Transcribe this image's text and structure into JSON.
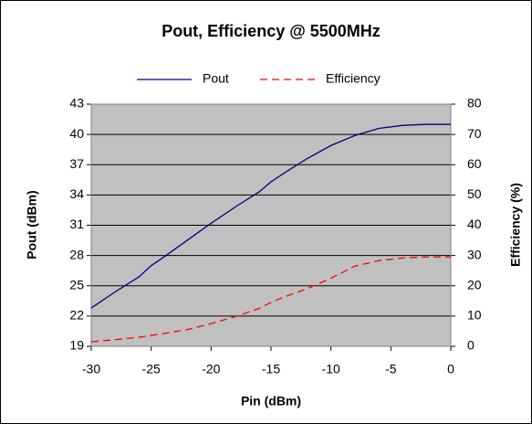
{
  "chart_data": {
    "type": "line",
    "title": "Pout, Efficiency @ 5500MHz",
    "xlabel": "Pin (dBm)",
    "ylabel": "Pout (dBm)",
    "y2label": "Efficiency (%)",
    "x": [
      -30,
      -28,
      -26,
      -25,
      -24,
      -22,
      -20,
      -18,
      -16,
      -15,
      -14,
      -12,
      -10,
      -8,
      -6,
      -4,
      -2,
      0
    ],
    "series": [
      {
        "name": "Pout",
        "color": "#000080",
        "dash": false,
        "values": [
          22.8,
          24.4,
          25.9,
          27.0,
          27.8,
          29.5,
          31.2,
          32.8,
          34.3,
          35.3,
          36.1,
          37.6,
          38.9,
          39.9,
          40.6,
          40.9,
          41.0,
          41.0
        ]
      },
      {
        "name": "Efficiency",
        "color": "#ff0000",
        "dash": true,
        "axis": "y2",
        "values": [
          1.5,
          2.2,
          3.0,
          3.6,
          4.2,
          5.5,
          7.5,
          9.8,
          12.5,
          14.5,
          16.2,
          19.0,
          22.5,
          26.5,
          28.3,
          29.2,
          29.5,
          29.5
        ]
      }
    ],
    "xlim": [
      -30,
      0
    ],
    "xticks": [
      -30,
      -25,
      -20,
      -15,
      -10,
      -5,
      0
    ],
    "ylim": [
      19,
      43
    ],
    "yticks": [
      19,
      22,
      25,
      28,
      31,
      34,
      37,
      40,
      43
    ],
    "y2lim": [
      0,
      80
    ],
    "y2ticks": [
      0,
      10,
      20,
      30,
      40,
      50,
      60,
      70,
      80
    ],
    "grid": true,
    "legend": "top",
    "plot_background": "#c0c0c0"
  }
}
